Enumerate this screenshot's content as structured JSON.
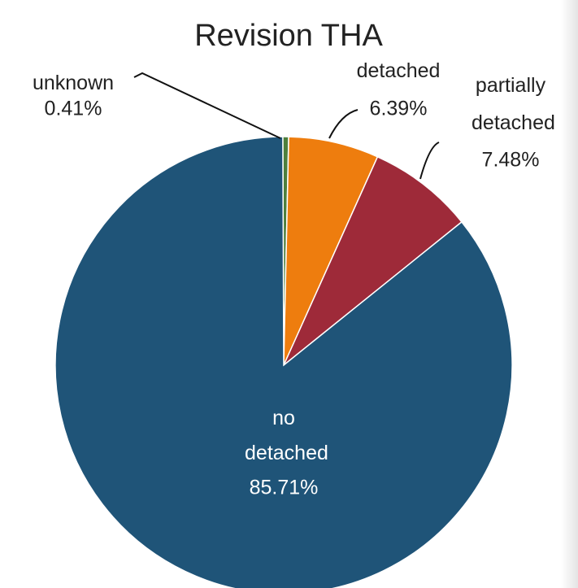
{
  "chart_data": {
    "type": "pie",
    "title": "Revision THA",
    "categories": [
      "unknown",
      "detached",
      "partially detached",
      "no detached"
    ],
    "values": [
      0.41,
      6.39,
      7.48,
      85.71
    ],
    "value_labels": [
      "0.41%",
      "6.39%",
      "7.48%",
      "85.71%"
    ],
    "colors": [
      "#4e7f3c",
      "#ee7d0e",
      "#9e2a39",
      "#1f5478"
    ]
  }
}
